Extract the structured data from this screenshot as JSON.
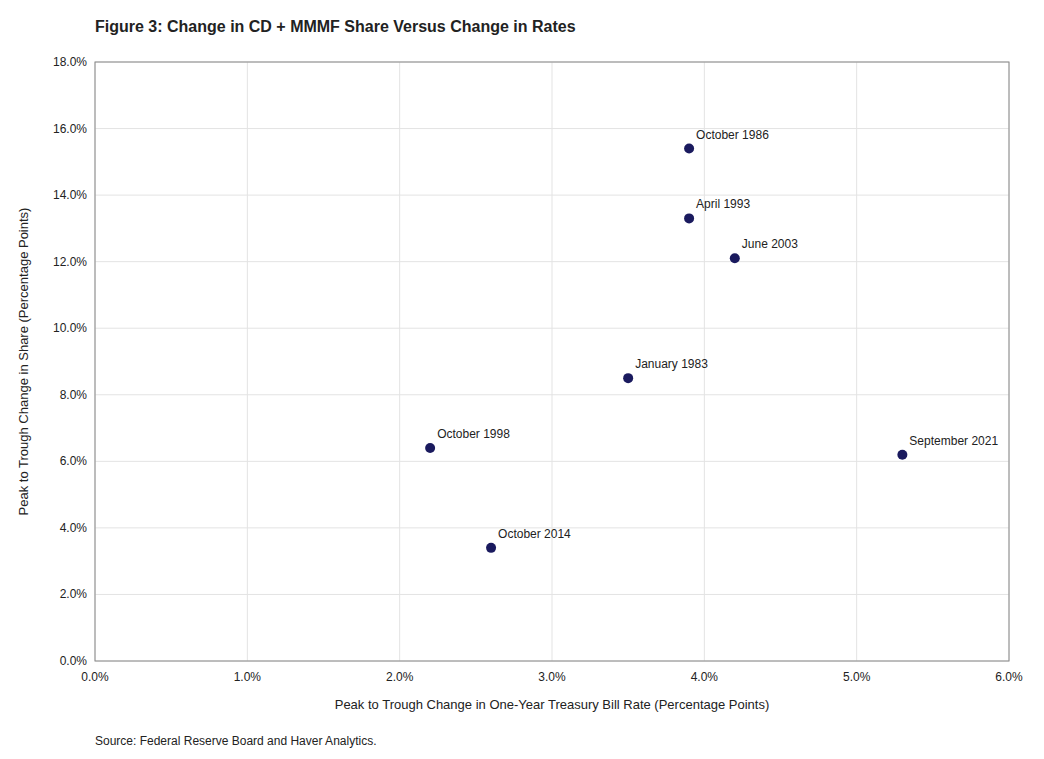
{
  "chart_data": {
    "type": "scatter",
    "title": "Figure 3: Change in CD + MMMF Share Versus Change in Rates",
    "x_label": "Peak to Trough Change in One-Year Treasury Bill Rate (Percentage Points)",
    "y_label": "Peak to Trough Change in Share (Percentage Points)",
    "source": "Source: Federal Reserve Board and Haver Analytics.",
    "x": [
      0.039,
      0.039,
      0.042,
      0.035,
      0.022,
      0.053,
      0.026
    ],
    "values": [
      0.154,
      0.133,
      0.121,
      0.085,
      0.064,
      0.062,
      0.034
    ],
    "labels": [
      "October 1986",
      "April 1993",
      "June 2003",
      "January 1983",
      "October 1998",
      "September 2021",
      "October 2014"
    ],
    "color": "#1a1a5e",
    "xlim": [
      0.0,
      0.06
    ],
    "ylim": [
      0.0,
      0.18
    ],
    "xticks": [
      {
        "value": 0.0,
        "label": "0.0%"
      },
      {
        "value": 0.01,
        "label": "1.0%"
      },
      {
        "value": 0.02,
        "label": "2.0%"
      },
      {
        "value": 0.03,
        "label": "3.0%"
      },
      {
        "value": 0.04,
        "label": "4.0%"
      },
      {
        "value": 0.05,
        "label": "5.0%"
      },
      {
        "value": 0.06,
        "label": "6.0%"
      }
    ],
    "yticks": [
      {
        "value": 0.0,
        "label": "0.0%"
      },
      {
        "value": 0.02,
        "label": "2.0%"
      },
      {
        "value": 0.04,
        "label": "4.0%"
      },
      {
        "value": 0.06,
        "label": "6.0%"
      },
      {
        "value": 0.08,
        "label": "8.0%"
      },
      {
        "value": 0.1,
        "label": "10.0%"
      },
      {
        "value": 0.12,
        "label": "12.0%"
      },
      {
        "value": 0.14,
        "label": "14.0%"
      },
      {
        "value": 0.16,
        "label": "16.0%"
      },
      {
        "value": 0.18,
        "label": "18.0%"
      }
    ],
    "grid": true
  }
}
